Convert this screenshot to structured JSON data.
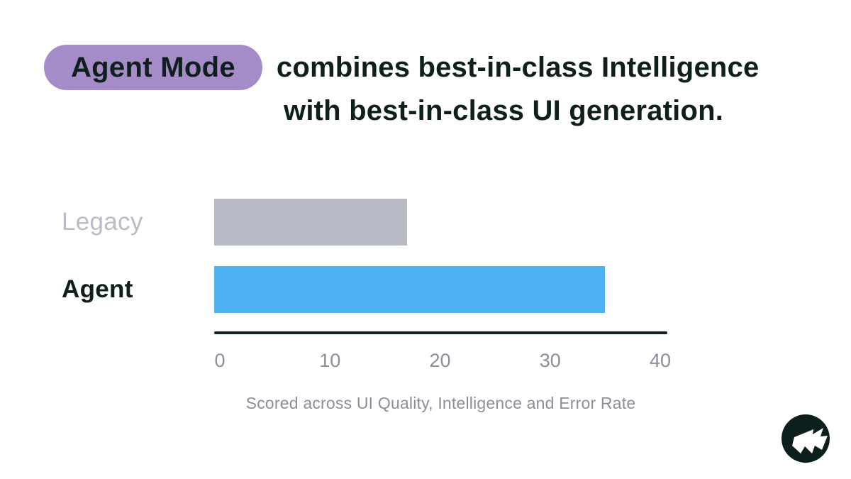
{
  "title": {
    "highlight": "Agent Mode",
    "line1_rest": "combines best-in-class Intelligence",
    "line2": "with best-in-class UI generation."
  },
  "chart_data": {
    "type": "bar",
    "orientation": "horizontal",
    "categories": [
      "Legacy",
      "Agent"
    ],
    "values": [
      17,
      35
    ],
    "colors": [
      "#b8bbc5",
      "#4fb2f3"
    ],
    "category_label_colors": [
      "#b9bcc8",
      "#0e1f1c"
    ],
    "xlim": [
      0,
      40
    ],
    "xticks": [
      0,
      10,
      20,
      30,
      40
    ],
    "xlabel": "Scored across UI Quality, Intelligence and Error Rate",
    "grid": false,
    "legend": false
  },
  "colors": {
    "background": "#ffffff",
    "text_dark": "#0e1f1c",
    "highlight_bg": "#a58cc9",
    "muted_text": "#8b8e9a",
    "axis_line": "#13231f",
    "logo_bg": "#0d1f1c",
    "logo_glyph": "#ffffff"
  },
  "logo": {
    "icon": "flag-bolt-icon"
  }
}
